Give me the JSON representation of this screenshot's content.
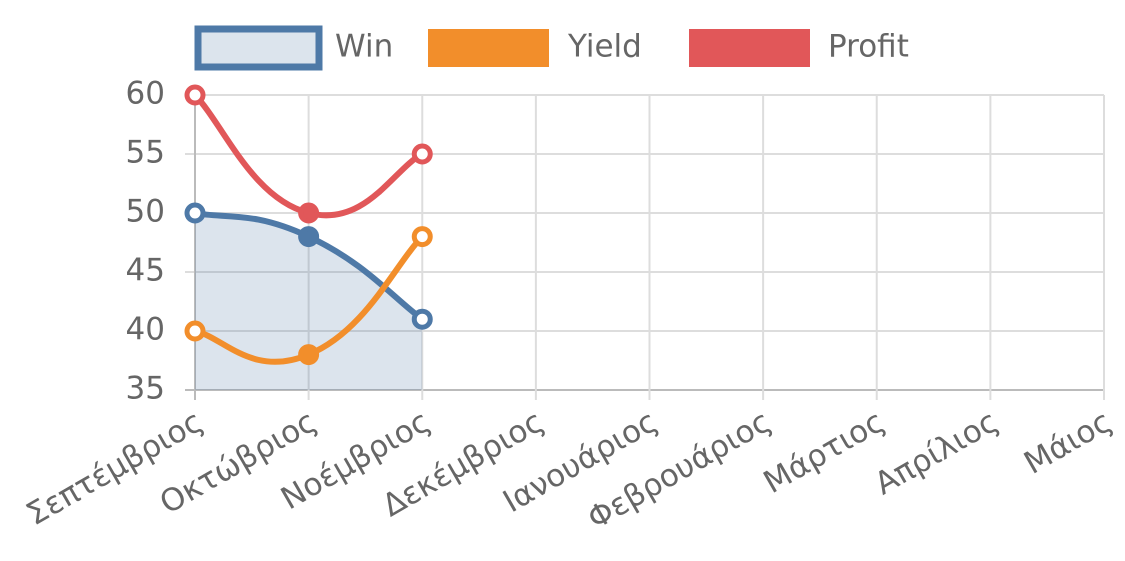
{
  "chart_data": {
    "type": "line",
    "categories": [
      "Σεπτέμβριος",
      "Οκτώβριος",
      "Νοέμβριος",
      "Δεκέμβριος",
      "Ιανουάριος",
      "Φεβρουάριος",
      "Μάρτιος",
      "Απρίλιος",
      "Μάιος"
    ],
    "series": [
      {
        "name": "Win",
        "color": "#4e79a7",
        "fill": true,
        "values": [
          50,
          48,
          41,
          null,
          null,
          null,
          null,
          null,
          null
        ]
      },
      {
        "name": "Yield",
        "color": "#f28e2b",
        "fill": false,
        "values": [
          40,
          38,
          48,
          null,
          null,
          null,
          null,
          null,
          null
        ]
      },
      {
        "name": "Profit",
        "color": "#e15759",
        "fill": false,
        "values": [
          60,
          50,
          55,
          null,
          null,
          null,
          null,
          null,
          null
        ]
      }
    ],
    "ylim": [
      35,
      60
    ],
    "yticks": [
      35,
      40,
      45,
      50,
      55,
      60
    ],
    "grid": true,
    "legend": "top"
  }
}
